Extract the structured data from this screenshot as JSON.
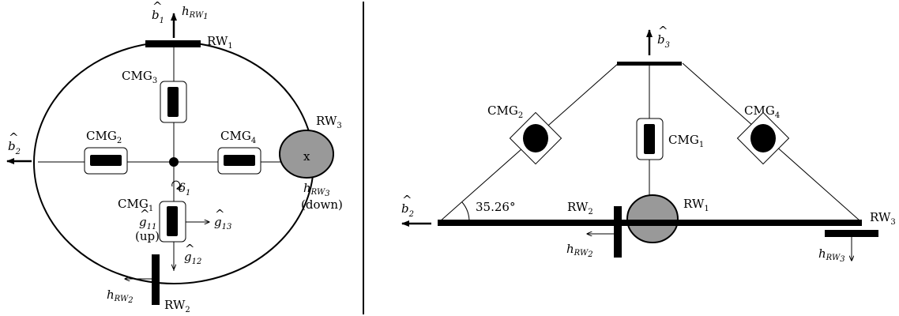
{
  "colors": {
    "ink": "#000000",
    "wheel_fill": "#999999",
    "background": "#ffffff"
  },
  "left": {
    "b1": {
      "base": "b",
      "hat": "^",
      "sub": "1"
    },
    "h_rw1": {
      "base": "h",
      "sub": "RW",
      "subsub": "1"
    },
    "rw1": {
      "base": "RW",
      "sub": "1"
    },
    "cmg3": {
      "base": "CMG",
      "sub": "3"
    },
    "cmg2": {
      "base": "CMG",
      "sub": "2"
    },
    "cmg4": {
      "base": "CMG",
      "sub": "4"
    },
    "rw3": {
      "base": "RW",
      "sub": "3"
    },
    "rw3_mark": "x",
    "b2": {
      "base": "b",
      "hat": "^",
      "sub": "2"
    },
    "h_rw3": {
      "base": "h",
      "sub": "RW",
      "subsub": "3"
    },
    "down": "(down)",
    "delta1": {
      "base": "δ",
      "sub": "1"
    },
    "cmg1": {
      "base": "CMG",
      "sub": "1"
    },
    "g11": {
      "base": "g",
      "hat": "^",
      "sub": "11"
    },
    "up": "(up)",
    "g13": {
      "base": "g",
      "hat": "^",
      "sub": "13"
    },
    "g12": {
      "base": "g",
      "hat": "^",
      "sub": "12"
    },
    "h_rw2": {
      "base": "h",
      "sub": "RW",
      "subsub": "2"
    },
    "rw2": {
      "base": "RW",
      "sub": "2"
    }
  },
  "right": {
    "b3": {
      "base": "b",
      "hat": "^",
      "sub": "3"
    },
    "cmg2": {
      "base": "CMG",
      "sub": "2"
    },
    "cmg4": {
      "base": "CMG",
      "sub": "4"
    },
    "cmg1": {
      "base": "CMG",
      "sub": "1"
    },
    "b2": {
      "base": "b",
      "hat": "^",
      "sub": "2"
    },
    "angle": "35.26°",
    "rw2": {
      "base": "RW",
      "sub": "2"
    },
    "rw1": {
      "base": "RW",
      "sub": "1"
    },
    "rw3": {
      "base": "RW",
      "sub": "3"
    },
    "h_rw2": {
      "base": "h",
      "sub": "RW",
      "subsub": "2"
    },
    "h_rw3": {
      "base": "h",
      "sub": "RW",
      "subsub": "3"
    }
  }
}
